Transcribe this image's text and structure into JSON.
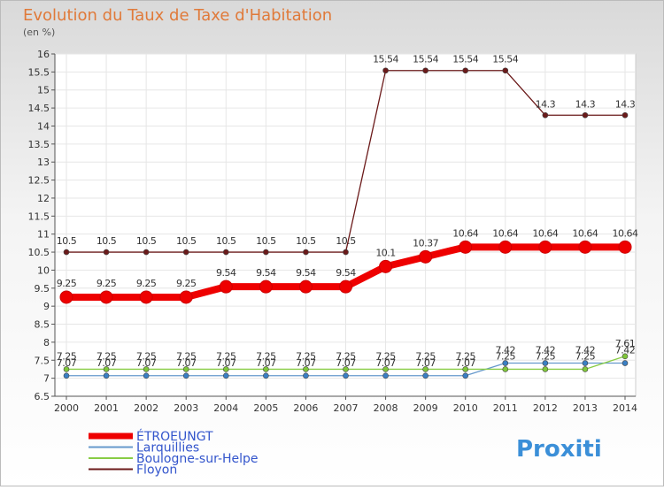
{
  "chart_data": {
    "type": "line",
    "title": "Evolution du Taux de Taxe d'Habitation",
    "subtitle": "(en %)",
    "x": [
      "2000",
      "2001",
      "2002",
      "2003",
      "2004",
      "2005",
      "2006",
      "2007",
      "2008",
      "2009",
      "2010",
      "2011",
      "2012",
      "2013",
      "2014"
    ],
    "y_ticks": [
      "6.5",
      "7",
      "7.5",
      "8",
      "8.5",
      "9",
      "9.5",
      "10",
      "10.5",
      "11",
      "11.5",
      "12",
      "12.5",
      "13",
      "13.5",
      "14",
      "14.5",
      "15",
      "15.5",
      "16"
    ],
    "ylim": [
      6.5,
      16
    ],
    "grid": true,
    "series": [
      {
        "name": "ÉTROEUNGT",
        "color": "#ee0000",
        "values": [
          9.25,
          9.25,
          9.25,
          9.25,
          9.54,
          9.54,
          9.54,
          9.54,
          10.1,
          10.37,
          10.64,
          10.64,
          10.64,
          10.64,
          10.64
        ],
        "labels": [
          "9.25",
          "9.25",
          "9.25",
          "9.25",
          "9.54",
          "9.54",
          "9.54",
          "9.54",
          "10.1",
          "10.37",
          "10.64",
          "10.64",
          "10.64",
          "10.64",
          "10.64"
        ]
      },
      {
        "name": "Larquillies",
        "color": "#6699cc",
        "values": [
          7.07,
          7.07,
          7.07,
          7.07,
          7.07,
          7.07,
          7.07,
          7.07,
          7.07,
          7.07,
          7.07,
          7.42,
          7.42,
          7.42,
          7.42
        ],
        "labels": [
          "7.07",
          "7.07",
          "7.07",
          "7.07",
          "7.07",
          "7.07",
          "7.07",
          "7.07",
          "7.07",
          "7.07",
          "7.07",
          "7.42",
          "7.42",
          "7.42",
          "7.42"
        ]
      },
      {
        "name": "Boulogne-sur-Helpe",
        "color": "#88cc44",
        "values": [
          7.25,
          7.25,
          7.25,
          7.25,
          7.25,
          7.25,
          7.25,
          7.25,
          7.25,
          7.25,
          7.25,
          7.25,
          7.25,
          7.25,
          7.61
        ],
        "labels": [
          "7.25",
          "7.25",
          "7.25",
          "7.25",
          "7.25",
          "7.25",
          "7.25",
          "7.25",
          "7.25",
          "7.25",
          "7.25",
          "7.25",
          "7.25",
          "7.25",
          "7.61"
        ]
      },
      {
        "name": "Floyon",
        "color": "#6b1a1a",
        "values": [
          10.5,
          10.5,
          10.5,
          10.5,
          10.5,
          10.5,
          10.5,
          10.5,
          15.54,
          15.54,
          15.54,
          15.54,
          14.3,
          14.3,
          14.3
        ],
        "labels": [
          "10.5",
          "10.5",
          "10.5",
          "10.5",
          "10.5",
          "10.5",
          "10.5",
          "10.5",
          "15.54",
          "15.54",
          "15.54",
          "15.54",
          "14.3",
          "14.3",
          "14.3"
        ]
      }
    ],
    "legend": "bottom-left"
  },
  "logo": {
    "text": "Proxiti"
  }
}
